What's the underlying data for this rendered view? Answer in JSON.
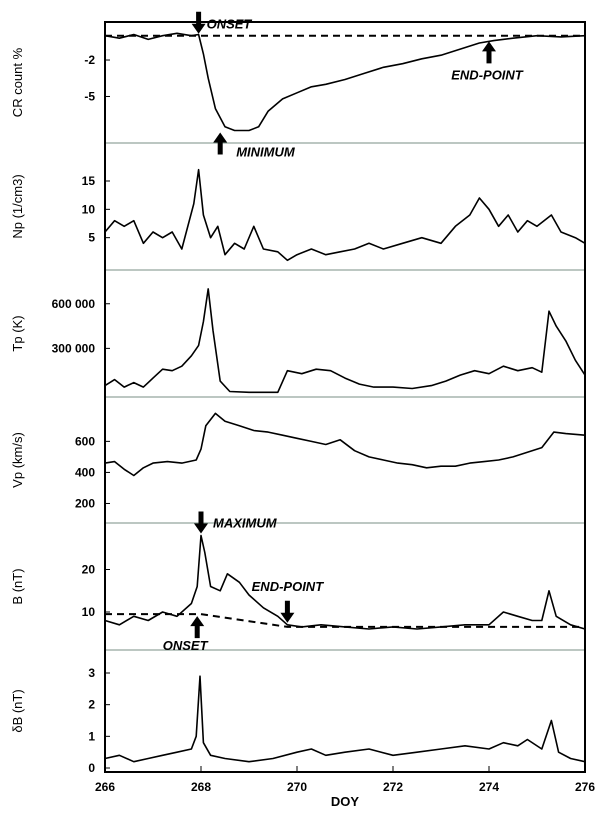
{
  "chart_data": {
    "type": "line",
    "x": {
      "label": "DOY",
      "range": [
        266,
        276
      ],
      "ticks": [
        266,
        268,
        270,
        272,
        274,
        276
      ],
      "tick_labels": [
        "266",
        "268",
        "270",
        "272",
        "274",
        "276"
      ]
    },
    "panels": [
      {
        "key": "cr",
        "ylabel": "CR count %",
        "ylim": [
          -8.5,
          0.8
        ],
        "ticks": [
          -2,
          -5
        ],
        "tick_labels": [
          "-2",
          "-5"
        ],
        "series": [
          [
            266,
            0.0
          ],
          [
            266.3,
            -0.2
          ],
          [
            266.6,
            0.1
          ],
          [
            266.9,
            -0.3
          ],
          [
            267.2,
            0.0
          ],
          [
            267.5,
            0.2
          ],
          [
            267.8,
            0.0
          ],
          [
            267.95,
            0.1
          ],
          [
            268.05,
            -1.5
          ],
          [
            268.15,
            -3.5
          ],
          [
            268.3,
            -6.0
          ],
          [
            268.5,
            -7.5
          ],
          [
            268.7,
            -7.8
          ],
          [
            269.0,
            -7.8
          ],
          [
            269.2,
            -7.5
          ],
          [
            269.4,
            -6.2
          ],
          [
            269.7,
            -5.2
          ],
          [
            270.0,
            -4.7
          ],
          [
            270.3,
            -4.2
          ],
          [
            270.6,
            -4.0
          ],
          [
            271.0,
            -3.6
          ],
          [
            271.4,
            -3.1
          ],
          [
            271.8,
            -2.6
          ],
          [
            272.2,
            -2.3
          ],
          [
            272.6,
            -1.9
          ],
          [
            273.0,
            -1.6
          ],
          [
            273.4,
            -1.1
          ],
          [
            273.8,
            -0.6
          ],
          [
            274.1,
            -0.4
          ],
          [
            274.5,
            -0.2
          ],
          [
            275.0,
            0.0
          ],
          [
            275.5,
            -0.1
          ],
          [
            276.0,
            0.0
          ]
        ]
      },
      {
        "key": "np",
        "ylabel": "Np (1/cm3)",
        "ylim": [
          0,
          21
        ],
        "ticks": [
          5,
          10,
          15
        ],
        "tick_labels": [
          "5",
          "10",
          "15"
        ],
        "series": [
          [
            266,
            6
          ],
          [
            266.2,
            8
          ],
          [
            266.4,
            7
          ],
          [
            266.6,
            8
          ],
          [
            266.8,
            4
          ],
          [
            267.0,
            6
          ],
          [
            267.2,
            5
          ],
          [
            267.4,
            6
          ],
          [
            267.6,
            3
          ],
          [
            267.85,
            11
          ],
          [
            267.95,
            17
          ],
          [
            268.05,
            9
          ],
          [
            268.2,
            5
          ],
          [
            268.35,
            7
          ],
          [
            268.5,
            2
          ],
          [
            268.7,
            4
          ],
          [
            268.9,
            3
          ],
          [
            269.1,
            7
          ],
          [
            269.3,
            3
          ],
          [
            269.6,
            2.5
          ],
          [
            269.8,
            1
          ],
          [
            270.0,
            2
          ],
          [
            270.3,
            3
          ],
          [
            270.6,
            2
          ],
          [
            270.9,
            2.5
          ],
          [
            271.2,
            3
          ],
          [
            271.5,
            4
          ],
          [
            271.8,
            3
          ],
          [
            272.2,
            4
          ],
          [
            272.6,
            5
          ],
          [
            273.0,
            4
          ],
          [
            273.3,
            7
          ],
          [
            273.6,
            9
          ],
          [
            273.8,
            12
          ],
          [
            274.0,
            10
          ],
          [
            274.2,
            7
          ],
          [
            274.4,
            9
          ],
          [
            274.6,
            6
          ],
          [
            274.8,
            8
          ],
          [
            275.0,
            7
          ],
          [
            275.3,
            9
          ],
          [
            275.5,
            6
          ],
          [
            275.8,
            5
          ],
          [
            276.0,
            4
          ]
        ]
      },
      {
        "key": "tp",
        "ylabel": "Tp (K)",
        "ylim": [
          0,
          800000
        ],
        "ticks": [
          300000,
          600000
        ],
        "tick_labels": [
          "300 000",
          "600 000"
        ],
        "series": [
          [
            266,
            50000
          ],
          [
            266.2,
            90000
          ],
          [
            266.4,
            40000
          ],
          [
            266.6,
            70000
          ],
          [
            266.8,
            40000
          ],
          [
            267.0,
            100000
          ],
          [
            267.2,
            160000
          ],
          [
            267.4,
            150000
          ],
          [
            267.6,
            180000
          ],
          [
            267.8,
            250000
          ],
          [
            267.95,
            320000
          ],
          [
            268.05,
            480000
          ],
          [
            268.15,
            700000
          ],
          [
            268.25,
            420000
          ],
          [
            268.4,
            80000
          ],
          [
            268.6,
            10000
          ],
          [
            269.0,
            5000
          ],
          [
            269.6,
            5000
          ],
          [
            269.8,
            150000
          ],
          [
            270.1,
            130000
          ],
          [
            270.4,
            160000
          ],
          [
            270.7,
            150000
          ],
          [
            271.0,
            100000
          ],
          [
            271.3,
            60000
          ],
          [
            271.6,
            40000
          ],
          [
            272.0,
            40000
          ],
          [
            272.4,
            30000
          ],
          [
            272.8,
            50000
          ],
          [
            273.1,
            80000
          ],
          [
            273.4,
            120000
          ],
          [
            273.7,
            150000
          ],
          [
            274.0,
            130000
          ],
          [
            274.3,
            180000
          ],
          [
            274.6,
            150000
          ],
          [
            274.9,
            170000
          ],
          [
            275.1,
            140000
          ],
          [
            275.25,
            550000
          ],
          [
            275.4,
            450000
          ],
          [
            275.6,
            350000
          ],
          [
            275.8,
            220000
          ],
          [
            276.0,
            120000
          ]
        ]
      },
      {
        "key": "vp",
        "ylabel": "Vp (km/s)",
        "ylim": [
          100,
          860
        ],
        "ticks": [
          200,
          400,
          600
        ],
        "tick_labels": [
          "200",
          "400",
          "600"
        ],
        "series": [
          [
            266,
            460
          ],
          [
            266.2,
            470
          ],
          [
            266.4,
            420
          ],
          [
            266.6,
            380
          ],
          [
            266.8,
            430
          ],
          [
            267.0,
            460
          ],
          [
            267.3,
            470
          ],
          [
            267.6,
            460
          ],
          [
            267.9,
            480
          ],
          [
            268.0,
            550
          ],
          [
            268.1,
            700
          ],
          [
            268.3,
            780
          ],
          [
            268.5,
            730
          ],
          [
            268.8,
            700
          ],
          [
            269.1,
            670
          ],
          [
            269.4,
            660
          ],
          [
            269.7,
            640
          ],
          [
            270.0,
            620
          ],
          [
            270.3,
            600
          ],
          [
            270.6,
            580
          ],
          [
            270.9,
            610
          ],
          [
            271.2,
            540
          ],
          [
            271.5,
            500
          ],
          [
            271.8,
            480
          ],
          [
            272.1,
            460
          ],
          [
            272.4,
            450
          ],
          [
            272.7,
            430
          ],
          [
            273.0,
            440
          ],
          [
            273.3,
            440
          ],
          [
            273.6,
            460
          ],
          [
            273.9,
            470
          ],
          [
            274.2,
            480
          ],
          [
            274.5,
            500
          ],
          [
            274.8,
            530
          ],
          [
            275.1,
            560
          ],
          [
            275.35,
            660
          ],
          [
            275.6,
            650
          ],
          [
            276.0,
            640
          ]
        ]
      },
      {
        "key": "b",
        "ylabel": "B (nT)",
        "ylim": [
          2,
          30
        ],
        "ticks": [
          10,
          20
        ],
        "tick_labels": [
          "10",
          "20"
        ],
        "series": [
          [
            266,
            8
          ],
          [
            266.3,
            7
          ],
          [
            266.6,
            9
          ],
          [
            266.9,
            8
          ],
          [
            267.2,
            10
          ],
          [
            267.5,
            9
          ],
          [
            267.8,
            12
          ],
          [
            267.92,
            16
          ],
          [
            268.0,
            28
          ],
          [
            268.08,
            24
          ],
          [
            268.2,
            16
          ],
          [
            268.4,
            15
          ],
          [
            268.55,
            19
          ],
          [
            268.8,
            17
          ],
          [
            269.0,
            14
          ],
          [
            269.3,
            11
          ],
          [
            269.6,
            9
          ],
          [
            269.8,
            7
          ],
          [
            270.1,
            6.5
          ],
          [
            270.5,
            7
          ],
          [
            271.0,
            6.5
          ],
          [
            271.5,
            6
          ],
          [
            272.0,
            6.5
          ],
          [
            272.5,
            6
          ],
          [
            273.0,
            6.5
          ],
          [
            273.5,
            7
          ],
          [
            274.0,
            7
          ],
          [
            274.3,
            10
          ],
          [
            274.6,
            9
          ],
          [
            274.9,
            8
          ],
          [
            275.1,
            8
          ],
          [
            275.25,
            15
          ],
          [
            275.4,
            9
          ],
          [
            275.7,
            7
          ],
          [
            276.0,
            6
          ]
        ]
      },
      {
        "key": "db",
        "ylabel": "δB  (nT)",
        "ylim": [
          0,
          3.6
        ],
        "ticks": [
          0,
          1,
          2,
          3
        ],
        "tick_labels": [
          "0",
          "1",
          "2",
          "3"
        ],
        "series": [
          [
            266,
            0.3
          ],
          [
            266.3,
            0.4
          ],
          [
            266.6,
            0.2
          ],
          [
            266.9,
            0.3
          ],
          [
            267.2,
            0.4
          ],
          [
            267.5,
            0.5
          ],
          [
            267.8,
            0.6
          ],
          [
            267.9,
            1.0
          ],
          [
            267.98,
            2.9
          ],
          [
            268.05,
            0.8
          ],
          [
            268.2,
            0.4
          ],
          [
            268.5,
            0.3
          ],
          [
            269.0,
            0.2
          ],
          [
            269.5,
            0.3
          ],
          [
            270.0,
            0.5
          ],
          [
            270.3,
            0.6
          ],
          [
            270.6,
            0.4
          ],
          [
            271.0,
            0.5
          ],
          [
            271.5,
            0.6
          ],
          [
            272.0,
            0.4
          ],
          [
            272.5,
            0.5
          ],
          [
            273.0,
            0.6
          ],
          [
            273.5,
            0.7
          ],
          [
            274.0,
            0.6
          ],
          [
            274.3,
            0.8
          ],
          [
            274.6,
            0.7
          ],
          [
            274.8,
            0.9
          ],
          [
            275.1,
            0.6
          ],
          [
            275.3,
            1.5
          ],
          [
            275.45,
            0.5
          ],
          [
            275.7,
            0.3
          ],
          [
            276.0,
            0.2
          ]
        ]
      }
    ],
    "reference_lines": {
      "cr_dashed": [
        [
          266,
          0.0
        ],
        [
          276,
          0.0
        ]
      ],
      "b_dashed": [
        [
          266,
          9.5
        ],
        [
          268.0,
          9.5
        ],
        [
          269.8,
          6.5
        ],
        [
          276,
          6.5
        ]
      ]
    },
    "annotations": [
      {
        "key": "cr_onset",
        "text": "ONSET",
        "panel": "cr",
        "x": 267.95,
        "y": 0.0,
        "arrow": "down"
      },
      {
        "key": "cr_minimum",
        "text": "MINIMUM",
        "panel": "cr",
        "x": 268.4,
        "y": -7.8,
        "arrow": "up"
      },
      {
        "key": "cr_endpoint",
        "text": "END-POINT",
        "panel": "cr",
        "x": 274.0,
        "y": -0.3,
        "arrow": "up"
      },
      {
        "key": "b_maximum",
        "text": "MAXIMUM",
        "panel": "b",
        "x": 268.0,
        "y": 28,
        "arrow": "down"
      },
      {
        "key": "b_endpoint",
        "text": "END-POINT",
        "panel": "b",
        "x": 269.8,
        "y": 7,
        "arrow": "down"
      },
      {
        "key": "b_onset",
        "text": "ONSET",
        "panel": "b",
        "x": 267.92,
        "y": 9.5,
        "arrow": "up"
      }
    ],
    "grid": false,
    "legend": "none"
  }
}
